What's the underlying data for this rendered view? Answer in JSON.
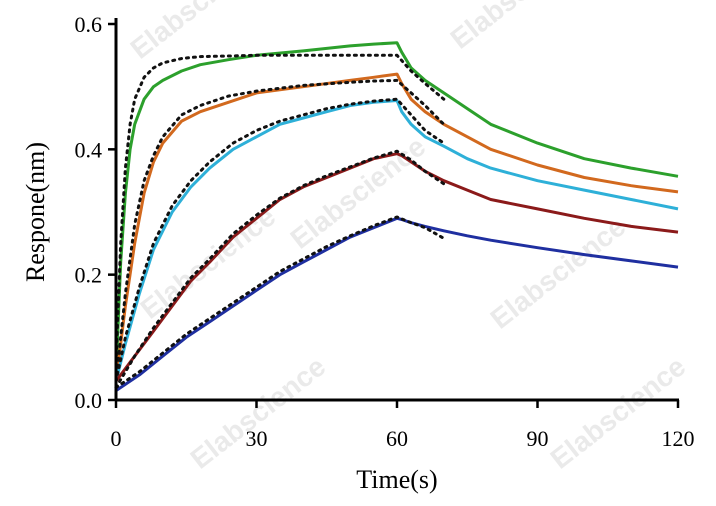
{
  "chart_data": {
    "type": "line",
    "title": "",
    "xlabel": "Time(s)",
    "ylabel": "Respone(nm)",
    "xlim": [
      0,
      120
    ],
    "ylim": [
      0,
      0.6
    ],
    "x_ticks": [
      0,
      30,
      60,
      90,
      120
    ],
    "x_tick_labels": [
      "0",
      "30",
      "60",
      "90",
      "120"
    ],
    "y_ticks": [
      0.0,
      0.2,
      0.4,
      0.6
    ],
    "y_tick_labels": [
      "0.0",
      "0.2",
      "0.4",
      "0.6"
    ],
    "grid": false,
    "legend": "none",
    "watermark": "Elabscience",
    "series": [
      {
        "color": "#2ca02c",
        "style": "solid",
        "x": [
          0,
          1,
          2,
          3,
          4,
          6,
          8,
          10,
          14,
          18,
          24,
          30,
          40,
          50,
          55,
          60,
          61,
          63,
          66,
          70,
          75,
          80,
          90,
          100,
          110,
          120
        ],
        "y": [
          0.04,
          0.22,
          0.33,
          0.4,
          0.44,
          0.48,
          0.5,
          0.51,
          0.525,
          0.535,
          0.543,
          0.55,
          0.557,
          0.565,
          0.568,
          0.57,
          0.555,
          0.53,
          0.51,
          0.49,
          0.465,
          0.44,
          0.41,
          0.385,
          0.37,
          0.357
        ]
      },
      {
        "color": "#d2691e",
        "style": "solid",
        "x": [
          0,
          2,
          4,
          6,
          8,
          10,
          14,
          18,
          24,
          30,
          40,
          50,
          55,
          60,
          61,
          63,
          66,
          70,
          75,
          80,
          90,
          100,
          110,
          120
        ],
        "y": [
          0.03,
          0.15,
          0.25,
          0.33,
          0.38,
          0.41,
          0.445,
          0.46,
          0.475,
          0.49,
          0.5,
          0.51,
          0.515,
          0.52,
          0.505,
          0.48,
          0.46,
          0.44,
          0.42,
          0.4,
          0.375,
          0.355,
          0.342,
          0.332
        ]
      },
      {
        "color": "#2eb0d8",
        "style": "solid",
        "x": [
          0,
          2,
          5,
          8,
          12,
          16,
          20,
          25,
          30,
          35,
          40,
          45,
          50,
          55,
          60,
          61,
          63,
          66,
          70,
          75,
          80,
          90,
          100,
          110,
          120
        ],
        "y": [
          0.03,
          0.09,
          0.17,
          0.24,
          0.3,
          0.34,
          0.37,
          0.4,
          0.42,
          0.44,
          0.45,
          0.46,
          0.47,
          0.475,
          0.478,
          0.46,
          0.44,
          0.42,
          0.405,
          0.385,
          0.37,
          0.35,
          0.335,
          0.32,
          0.305
        ]
      },
      {
        "color": "#8b1a1a",
        "style": "solid",
        "x": [
          0,
          4,
          8,
          12,
          16,
          20,
          25,
          30,
          35,
          40,
          45,
          50,
          55,
          60,
          61,
          63,
          66,
          70,
          75,
          80,
          90,
          100,
          110,
          120
        ],
        "y": [
          0.03,
          0.07,
          0.11,
          0.15,
          0.19,
          0.22,
          0.26,
          0.29,
          0.32,
          0.34,
          0.355,
          0.37,
          0.385,
          0.393,
          0.39,
          0.38,
          0.365,
          0.35,
          0.335,
          0.32,
          0.305,
          0.29,
          0.277,
          0.268
        ]
      },
      {
        "color": "#1f2fa0",
        "style": "solid",
        "x": [
          0,
          5,
          10,
          15,
          20,
          25,
          30,
          35,
          40,
          45,
          50,
          55,
          60,
          61,
          63,
          66,
          70,
          75,
          80,
          90,
          100,
          110,
          120
        ],
        "y": [
          0.015,
          0.04,
          0.07,
          0.1,
          0.125,
          0.15,
          0.175,
          0.2,
          0.22,
          0.24,
          0.26,
          0.275,
          0.29,
          0.288,
          0.283,
          0.277,
          0.27,
          0.262,
          0.255,
          0.243,
          0.232,
          0.222,
          0.212
        ]
      },
      {
        "color": "#111111",
        "style": "dotted",
        "x": [
          0,
          1,
          2,
          3,
          4,
          6,
          8,
          10,
          14,
          18,
          24,
          30,
          40,
          50,
          55,
          60,
          63,
          66,
          70
        ],
        "y": [
          0.06,
          0.25,
          0.37,
          0.44,
          0.48,
          0.515,
          0.53,
          0.538,
          0.545,
          0.548,
          0.549,
          0.55,
          0.55,
          0.55,
          0.55,
          0.55,
          0.525,
          0.505,
          0.48
        ]
      },
      {
        "color": "#111111",
        "style": "dotted",
        "x": [
          0,
          2,
          4,
          6,
          8,
          10,
          14,
          18,
          24,
          30,
          40,
          50,
          55,
          60,
          63,
          66,
          70
        ],
        "y": [
          0.03,
          0.17,
          0.28,
          0.35,
          0.39,
          0.42,
          0.455,
          0.47,
          0.485,
          0.493,
          0.502,
          0.507,
          0.509,
          0.51,
          0.49,
          0.47,
          0.44
        ]
      },
      {
        "color": "#111111",
        "style": "dotted",
        "x": [
          0,
          2,
          5,
          8,
          12,
          16,
          20,
          25,
          30,
          35,
          40,
          45,
          50,
          55,
          60,
          63,
          66,
          70
        ],
        "y": [
          0.03,
          0.1,
          0.18,
          0.25,
          0.31,
          0.35,
          0.38,
          0.41,
          0.43,
          0.445,
          0.455,
          0.465,
          0.472,
          0.477,
          0.48,
          0.455,
          0.43,
          0.41
        ]
      },
      {
        "color": "#111111",
        "style": "dotted",
        "x": [
          0,
          4,
          8,
          12,
          16,
          20,
          25,
          30,
          35,
          40,
          45,
          50,
          55,
          60,
          63,
          66,
          70
        ],
        "y": [
          0.02,
          0.07,
          0.115,
          0.155,
          0.195,
          0.225,
          0.265,
          0.295,
          0.322,
          0.342,
          0.358,
          0.372,
          0.386,
          0.397,
          0.383,
          0.365,
          0.345
        ]
      },
      {
        "color": "#111111",
        "style": "dotted",
        "x": [
          0,
          5,
          10,
          15,
          20,
          25,
          30,
          35,
          40,
          45,
          50,
          55,
          60,
          63,
          66,
          70
        ],
        "y": [
          0.02,
          0.045,
          0.075,
          0.105,
          0.13,
          0.155,
          0.18,
          0.205,
          0.225,
          0.245,
          0.262,
          0.278,
          0.292,
          0.283,
          0.275,
          0.258
        ]
      }
    ]
  }
}
